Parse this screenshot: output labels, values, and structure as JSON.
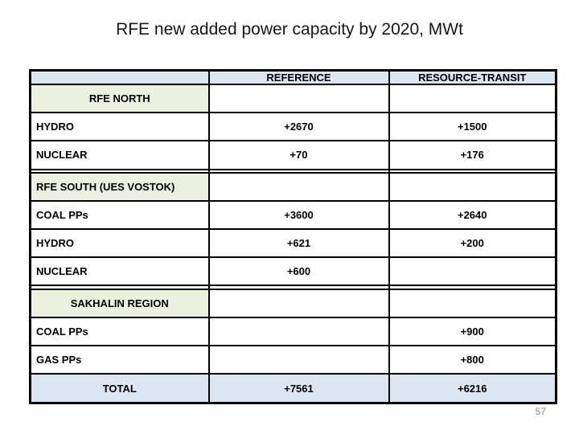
{
  "slide": {
    "title": "RFE new added power capacity by 2020, MWt",
    "page_number": "57"
  },
  "colors": {
    "header_fill": "#dce6f1",
    "section_fill": "#ebf1de",
    "total_fill": "#dce6f1",
    "border": "#000000",
    "title_text": "#161616",
    "page_number_text": "#8b8b8b"
  },
  "table": {
    "columns": [
      "",
      "REFERENCE",
      "RESOURCE-TRANSIT"
    ],
    "rows": [
      {
        "type": "section",
        "align": "center",
        "label": "RFE NORTH",
        "reference": "",
        "resource_transit": ""
      },
      {
        "type": "data",
        "align": "left",
        "label": "HYDRO",
        "reference": "+2670",
        "resource_transit": "+1500"
      },
      {
        "type": "data",
        "align": "left",
        "label": "NUCLEAR",
        "reference": "+70",
        "resource_transit": "+176"
      },
      {
        "type": "empty",
        "align": "left",
        "label": "",
        "reference": "",
        "resource_transit": ""
      },
      {
        "type": "section",
        "align": "left",
        "label": "RFE SOUTH (UES VOSTOK)",
        "reference": "",
        "resource_transit": ""
      },
      {
        "type": "data",
        "align": "left",
        "label": "COAL PPs",
        "reference": "+3600",
        "resource_transit": "+2640"
      },
      {
        "type": "data",
        "align": "left",
        "label": "HYDRO",
        "reference": "+621",
        "resource_transit": "+200"
      },
      {
        "type": "data",
        "align": "left",
        "label": "NUCLEAR",
        "reference": "+600",
        "resource_transit": ""
      },
      {
        "type": "empty",
        "align": "left",
        "label": "",
        "reference": "",
        "resource_transit": ""
      },
      {
        "type": "section",
        "align": "center",
        "label": "SAKHALIN REGION",
        "reference": "",
        "resource_transit": ""
      },
      {
        "type": "data",
        "align": "left",
        "label": "COAL PPs",
        "reference": "",
        "resource_transit": "+900"
      },
      {
        "type": "data",
        "align": "left",
        "label": "GAS PPs",
        "reference": "",
        "resource_transit": "+800"
      },
      {
        "type": "total",
        "align": "center",
        "label": "TOTAL",
        "reference": "+7561",
        "resource_transit": "+6216"
      }
    ]
  }
}
